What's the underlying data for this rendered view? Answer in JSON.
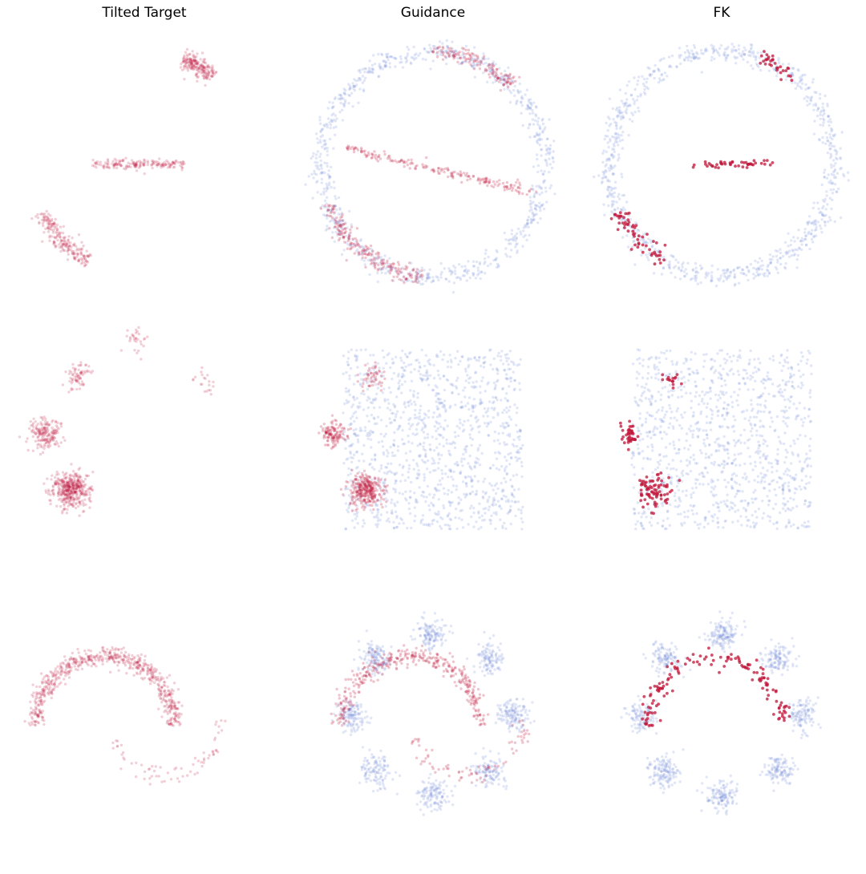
{
  "figure": {
    "column_titles": [
      "Tilted Target",
      "Guidance",
      "FK"
    ]
  },
  "colors": {
    "target": "#c0163a",
    "base": "#6f86d6"
  },
  "chart_data": [
    {
      "type": "scatter",
      "row": "circle",
      "column": "Tilted Target",
      "grid": false,
      "axes": false,
      "series": [
        {
          "color": "#c0163a",
          "alpha": 0.2,
          "clusters": [
            {
              "shape": "arc",
              "cx": 0,
              "cy": 0,
              "r": 1,
              "from_deg": 52,
              "to_deg": 70,
              "n": 200
            },
            {
              "shape": "segment",
              "x": [
                -0.45,
                0.35
              ],
              "y": [
                0,
                0
              ],
              "n": 170
            },
            {
              "shape": "arc",
              "cx": 0,
              "cy": 0,
              "r": 1,
              "from_deg": 205,
              "to_deg": 240,
              "n": 210
            }
          ]
        }
      ]
    },
    {
      "type": "scatter",
      "row": "circle",
      "column": "Guidance",
      "grid": false,
      "axes": false,
      "series": [
        {
          "color": "#6f86d6",
          "alpha": 0.2,
          "clusters": [
            {
              "shape": "ring",
              "cx": 0,
              "cy": 0,
              "r": 1,
              "n": 900
            }
          ]
        },
        {
          "color": "#c0163a",
          "alpha": 0.25,
          "clusters": [
            {
              "shape": "arc",
              "cx": 0,
              "cy": 0,
              "r": 1,
              "from_deg": 45,
              "to_deg": 90,
              "n": 140
            },
            {
              "shape": "segment",
              "x": [
                -0.8,
                0.9
              ],
              "y": [
                0.15,
                -0.25
              ],
              "n": 190
            },
            {
              "shape": "arc",
              "cx": 0,
              "cy": 0,
              "r": 1,
              "from_deg": 200,
              "to_deg": 265,
              "n": 210
            }
          ]
        }
      ]
    },
    {
      "type": "scatter",
      "row": "circle",
      "column": "FK",
      "grid": false,
      "axes": false,
      "series": [
        {
          "color": "#6f86d6",
          "alpha": 0.2,
          "clusters": [
            {
              "shape": "ring",
              "cx": 0,
              "cy": 0,
              "r": 1,
              "n": 900
            }
          ]
        },
        {
          "color": "#c0163a",
          "alpha": 0.75,
          "clusters": [
            {
              "shape": "arc",
              "cx": 0,
              "cy": 0,
              "r": 1,
              "from_deg": 50,
              "to_deg": 70,
              "n": 30
            },
            {
              "shape": "segment",
              "x": [
                -0.3,
                0.45
              ],
              "y": [
                0,
                0
              ],
              "n": 45
            },
            {
              "shape": "arc",
              "cx": 0,
              "cy": 0,
              "r": 1,
              "from_deg": 205,
              "to_deg": 240,
              "n": 60
            }
          ]
        }
      ]
    },
    {
      "type": "scatter",
      "row": "gaussians_square",
      "column": "Tilted Target",
      "grid": false,
      "axes": false,
      "series": [
        {
          "color": "#c0163a",
          "alpha": 0.2,
          "clusters": [
            {
              "shape": "blob",
              "cx": -0.65,
              "cy": -0.45,
              "sd": 0.08,
              "n": 420
            },
            {
              "shape": "blob",
              "cx": -0.88,
              "cy": 0.05,
              "sd": 0.07,
              "n": 180
            },
            {
              "shape": "blob",
              "cx": -0.6,
              "cy": 0.55,
              "sd": 0.06,
              "n": 70
            },
            {
              "shape": "blob",
              "cx": -0.05,
              "cy": 0.9,
              "sd": 0.06,
              "n": 30
            },
            {
              "shape": "blob",
              "cx": 0.55,
              "cy": 0.5,
              "sd": 0.06,
              "n": 20
            }
          ]
        }
      ]
    },
    {
      "type": "scatter",
      "row": "gaussians_square",
      "column": "Guidance",
      "grid": false,
      "axes": false,
      "series": [
        {
          "color": "#6f86d6",
          "alpha": 0.2,
          "clusters": [
            {
              "shape": "square",
              "x": [
                -0.8,
                0.8
              ],
              "y": [
                -0.8,
                0.8
              ],
              "n": 1200
            }
          ]
        },
        {
          "color": "#c0163a",
          "alpha": 0.25,
          "clusters": [
            {
              "shape": "blob",
              "cx": -0.6,
              "cy": -0.45,
              "sd": 0.07,
              "n": 300
            },
            {
              "shape": "blob",
              "cx": -0.88,
              "cy": 0.05,
              "sd": 0.06,
              "n": 120
            },
            {
              "shape": "blob",
              "cx": -0.55,
              "cy": 0.55,
              "sd": 0.06,
              "n": 50
            }
          ]
        }
      ]
    },
    {
      "type": "scatter",
      "row": "gaussians_square",
      "column": "FK",
      "grid": false,
      "axes": false,
      "series": [
        {
          "color": "#6f86d6",
          "alpha": 0.2,
          "clusters": [
            {
              "shape": "square",
              "x": [
                -0.8,
                0.8
              ],
              "y": [
                -0.8,
                0.8
              ],
              "n": 1100
            }
          ]
        },
        {
          "color": "#c0163a",
          "alpha": 0.75,
          "clusters": [
            {
              "shape": "blob",
              "cx": -0.6,
              "cy": -0.45,
              "sd": 0.08,
              "n": 80
            },
            {
              "shape": "blob",
              "cx": -0.82,
              "cy": 0.05,
              "sd": 0.05,
              "n": 40
            },
            {
              "shape": "blob",
              "cx": -0.45,
              "cy": 0.55,
              "sd": 0.05,
              "n": 15
            }
          ]
        }
      ]
    },
    {
      "type": "scatter",
      "row": "moons_ring",
      "column": "Tilted Target",
      "grid": false,
      "axes": false,
      "series": [
        {
          "color": "#c0163a",
          "alpha": 0.2,
          "clusters": [
            {
              "shape": "arc",
              "cx": -0.35,
              "cy": -0.1,
              "r": 0.62,
              "from_deg": 0,
              "to_deg": 180,
              "n": 650
            },
            {
              "shape": "arc",
              "cx": 0.2,
              "cy": -0.05,
              "r": 0.5,
              "from_deg": 200,
              "to_deg": 360,
              "n": 70
            }
          ]
        }
      ]
    },
    {
      "type": "scatter",
      "row": "moons_ring",
      "column": "Guidance",
      "grid": false,
      "axes": false,
      "series": [
        {
          "color": "#6f86d6",
          "alpha": 0.2,
          "clusters": [
            {
              "shape": "gaussian_ring",
              "cx": 0,
              "cy": 0,
              "r": 0.72,
              "k": 8,
              "sd": 0.07,
              "n": 960
            }
          ]
        },
        {
          "color": "#c0163a",
          "alpha": 0.25,
          "clusters": [
            {
              "shape": "arc",
              "cx": -0.2,
              "cy": -0.1,
              "r": 0.62,
              "from_deg": 0,
              "to_deg": 180,
              "n": 380
            },
            {
              "shape": "arc",
              "cx": 0.3,
              "cy": -0.05,
              "r": 0.5,
              "from_deg": 200,
              "to_deg": 360,
              "n": 80
            }
          ]
        }
      ]
    },
    {
      "type": "scatter",
      "row": "moons_ring",
      "column": "FK",
      "grid": false,
      "axes": false,
      "series": [
        {
          "color": "#6f86d6",
          "alpha": 0.2,
          "clusters": [
            {
              "shape": "gaussian_ring",
              "cx": 0,
              "cy": 0,
              "r": 0.72,
              "k": 8,
              "sd": 0.07,
              "n": 960
            }
          ]
        },
        {
          "color": "#c0163a",
          "alpha": 0.75,
          "clusters": [
            {
              "shape": "arc",
              "cx": -0.05,
              "cy": -0.1,
              "r": 0.6,
              "from_deg": 0,
              "to_deg": 180,
              "n": 140
            }
          ]
        }
      ]
    }
  ]
}
